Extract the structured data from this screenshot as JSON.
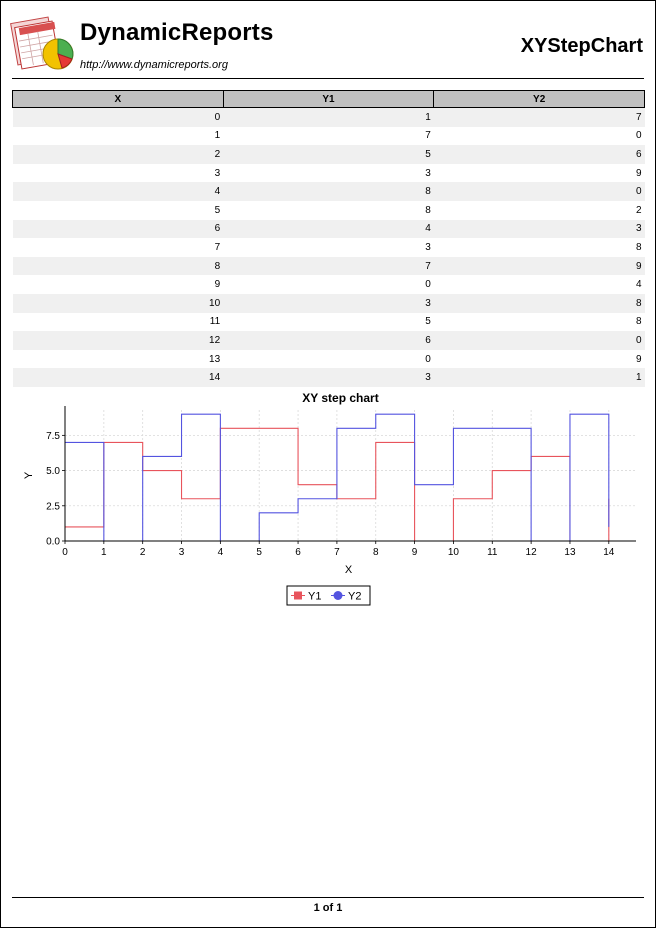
{
  "header": {
    "brand": "DynamicReports",
    "url": "http://www.dynamicreports.org",
    "report_title": "XYStepChart"
  },
  "table": {
    "columns": [
      "X",
      "Y1",
      "Y2"
    ],
    "rows": [
      [
        0,
        1,
        7
      ],
      [
        1,
        7,
        0
      ],
      [
        2,
        5,
        6
      ],
      [
        3,
        3,
        9
      ],
      [
        4,
        8,
        0
      ],
      [
        5,
        8,
        2
      ],
      [
        6,
        4,
        3
      ],
      [
        7,
        3,
        8
      ],
      [
        8,
        7,
        9
      ],
      [
        9,
        0,
        4
      ],
      [
        10,
        3,
        8
      ],
      [
        11,
        5,
        8
      ],
      [
        12,
        6,
        0
      ],
      [
        13,
        0,
        9
      ],
      [
        14,
        3,
        1
      ]
    ]
  },
  "chart_data": {
    "type": "line",
    "step": true,
    "title": "XY step chart",
    "xlabel": "X",
    "ylabel": "Y",
    "x": [
      0,
      1,
      2,
      3,
      4,
      5,
      6,
      7,
      8,
      9,
      10,
      11,
      12,
      13,
      14
    ],
    "xlim": [
      0,
      14.7
    ],
    "ylim": [
      0,
      9.3
    ],
    "xticks": [
      "0",
      "1",
      "2",
      "3",
      "4",
      "5",
      "6",
      "7",
      "8",
      "9",
      "10",
      "11",
      "12",
      "13",
      "14"
    ],
    "yticks": [
      "0.0",
      "2.5",
      "5.0",
      "7.5"
    ],
    "ytick_values": [
      0,
      2.5,
      5,
      7.5
    ],
    "grid": true,
    "legend": "bottom",
    "series": [
      {
        "name": "Y1",
        "color": "#e8545c",
        "marker": "square",
        "values": [
          1,
          7,
          5,
          3,
          8,
          8,
          4,
          3,
          7,
          0,
          3,
          5,
          6,
          0,
          3
        ]
      },
      {
        "name": "Y2",
        "color": "#5454e0",
        "marker": "circle",
        "values": [
          7,
          0,
          6,
          9,
          0,
          2,
          3,
          8,
          9,
          4,
          8,
          8,
          0,
          9,
          1
        ]
      }
    ]
  },
  "footer": {
    "page": "1 of 1"
  }
}
